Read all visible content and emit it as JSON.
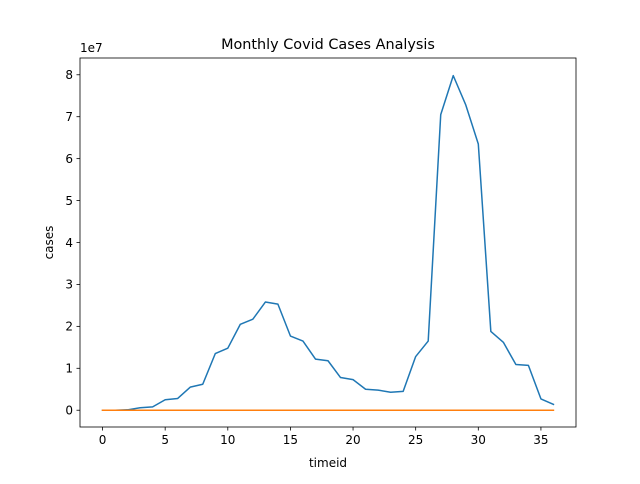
{
  "chart_data": {
    "type": "line",
    "title": "Monthly Covid Cases Analysis",
    "xlabel": "timeid",
    "ylabel": "cases",
    "y_offset_label": "1e7",
    "xlim": [
      -1.8,
      37.8
    ],
    "ylim": [
      -0.4,
      8.4
    ],
    "x_ticks": [
      0,
      5,
      10,
      15,
      20,
      25,
      30,
      35
    ],
    "y_ticks": [
      0,
      1,
      2,
      3,
      4,
      5,
      6,
      7,
      8
    ],
    "grid": false,
    "legend": "none",
    "x": [
      0,
      1,
      2,
      3,
      4,
      5,
      6,
      7,
      8,
      9,
      10,
      11,
      12,
      13,
      14,
      15,
      16,
      17,
      18,
      19,
      20,
      21,
      22,
      23,
      24,
      25,
      26,
      27,
      28,
      29,
      30,
      31,
      32,
      33,
      34,
      35,
      36
    ],
    "series": [
      {
        "color": "#1f77b4",
        "values": [
          0.0,
          0.0,
          0.01,
          0.06,
          0.08,
          0.25,
          0.28,
          0.55,
          0.62,
          1.35,
          1.48,
          2.05,
          2.17,
          2.58,
          2.53,
          1.77,
          1.65,
          1.22,
          1.18,
          0.78,
          0.73,
          0.5,
          0.48,
          0.43,
          0.45,
          1.28,
          1.65,
          7.05,
          7.98,
          7.28,
          6.35,
          1.88,
          1.62,
          1.09,
          1.07,
          0.27,
          0.14
        ]
      },
      {
        "color": "#ff7f0e",
        "values": [
          0.0,
          0.0,
          0.0,
          0.0,
          0.0,
          0.0,
          0.0,
          0.0,
          0.0,
          0.0,
          0.0,
          0.0,
          0.0,
          0.0,
          0.0,
          0.0,
          0.0,
          0.0,
          0.0,
          0.0,
          0.0,
          0.0,
          0.0,
          0.0,
          0.0,
          0.0,
          0.0,
          0.0,
          0.0,
          0.0,
          0.0,
          0.0,
          0.0,
          0.0,
          0.0,
          0.0,
          0.0
        ]
      }
    ]
  }
}
